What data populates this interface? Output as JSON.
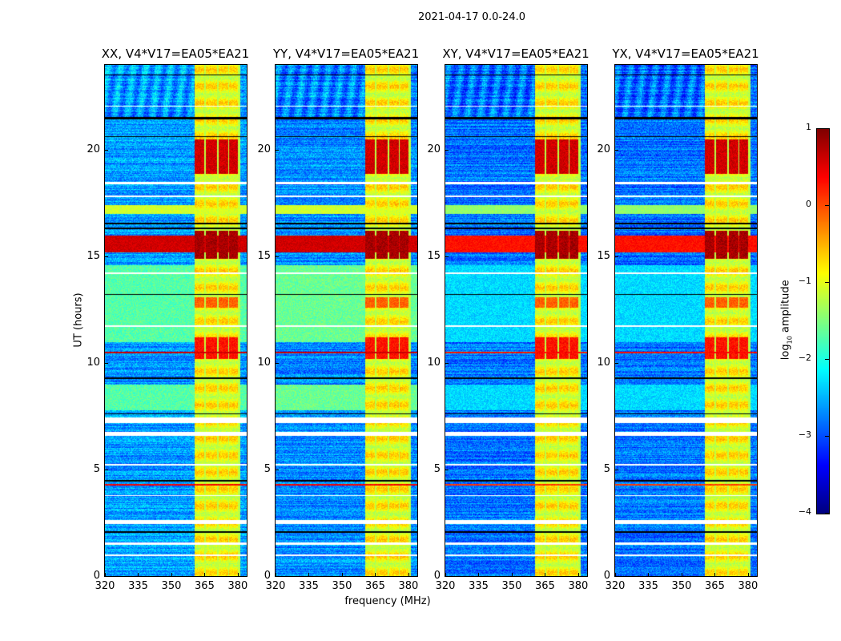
{
  "chart_data": {
    "type": "heatmap",
    "title": "2021-04-17 0.0-24.0",
    "xlabel": "frequency (MHz)",
    "ylabel": "UT (hours)",
    "xlim": [
      320,
      384
    ],
    "ylim": [
      0,
      24
    ],
    "xticks": [
      320,
      335,
      350,
      365,
      380
    ],
    "yticks": [
      0,
      5,
      10,
      15,
      20
    ],
    "colorbar": {
      "label_prefix": "log",
      "label_sub": "10",
      "label_suffix": " amplitude",
      "range": [
        -4,
        1
      ],
      "ticks": [
        -4,
        -3,
        -2,
        -1,
        0,
        1
      ],
      "tick_labels": [
        "−4",
        "−3",
        "−2",
        "−1",
        "0",
        "1"
      ],
      "colormap": "jet"
    },
    "panels": [
      {
        "title": "XX, V4*V17=EA05*EA21",
        "baseline": -2.6,
        "green_level": -1.7
      },
      {
        "title": "YY, V4*V17=EA05*EA21",
        "baseline": -2.7,
        "green_level": -1.6
      },
      {
        "title": "XY, V4*V17=EA05*EA21",
        "baseline": -2.8,
        "green_level": -2.3
      },
      {
        "title": "YX, V4*V17=EA05*EA21",
        "baseline": -2.8,
        "green_level": -2.3
      }
    ],
    "rfi_subbands_mhz": [
      [
        360.5,
        365
      ],
      [
        365.6,
        370.6
      ],
      [
        371.2,
        375.6
      ],
      [
        376.2,
        380.2
      ]
    ],
    "rfi_level": -0.9,
    "strong_intervals_hours": [
      {
        "range": [
          18.9,
          20.5
        ],
        "level": 0.6
      },
      {
        "range": [
          14.9,
          16.2
        ],
        "level": 0.8
      },
      {
        "range": [
          10.2,
          11.2
        ],
        "level": 0.3
      },
      {
        "range": [
          12.6,
          13.1
        ],
        "level": -0.1
      }
    ],
    "broadband_rows": [
      {
        "range": [
          15.2,
          16.0
        ],
        "level": 0.6
      },
      {
        "range": [
          17.0,
          17.4
        ],
        "level": -1.1
      },
      {
        "range": [
          10.45,
          10.55
        ],
        "level": 0.6
      },
      {
        "range": [
          4.25,
          4.32
        ],
        "level": 0.4
      }
    ],
    "green_band_hours": [
      [
        11.0,
        14.6
      ],
      [
        7.8,
        9.0
      ]
    ],
    "flagged_rows_hours": [
      [
        7.2,
        7.45
      ],
      [
        6.6,
        6.78
      ],
      [
        2.45,
        2.62
      ],
      [
        1.48,
        1.58
      ],
      [
        0.93,
        1.02
      ],
      [
        18.4,
        18.5
      ],
      [
        17.8,
        17.86
      ],
      [
        14.2,
        14.26
      ],
      [
        11.7,
        11.76
      ],
      [
        5.2,
        5.26
      ],
      [
        3.75,
        3.8
      ],
      [
        22.05,
        22.1
      ]
    ],
    "dark_rows_hours": [
      [
        21.45,
        21.55
      ],
      [
        16.5,
        16.6
      ],
      [
        16.3,
        16.35
      ],
      [
        9.25,
        9.32
      ],
      [
        4.45,
        4.5
      ],
      [
        2.05,
        2.1
      ],
      [
        20.6,
        20.64
      ],
      [
        13.2,
        13.25
      ],
      [
        7.6,
        7.65
      ],
      [
        23.5,
        23.55
      ]
    ]
  }
}
